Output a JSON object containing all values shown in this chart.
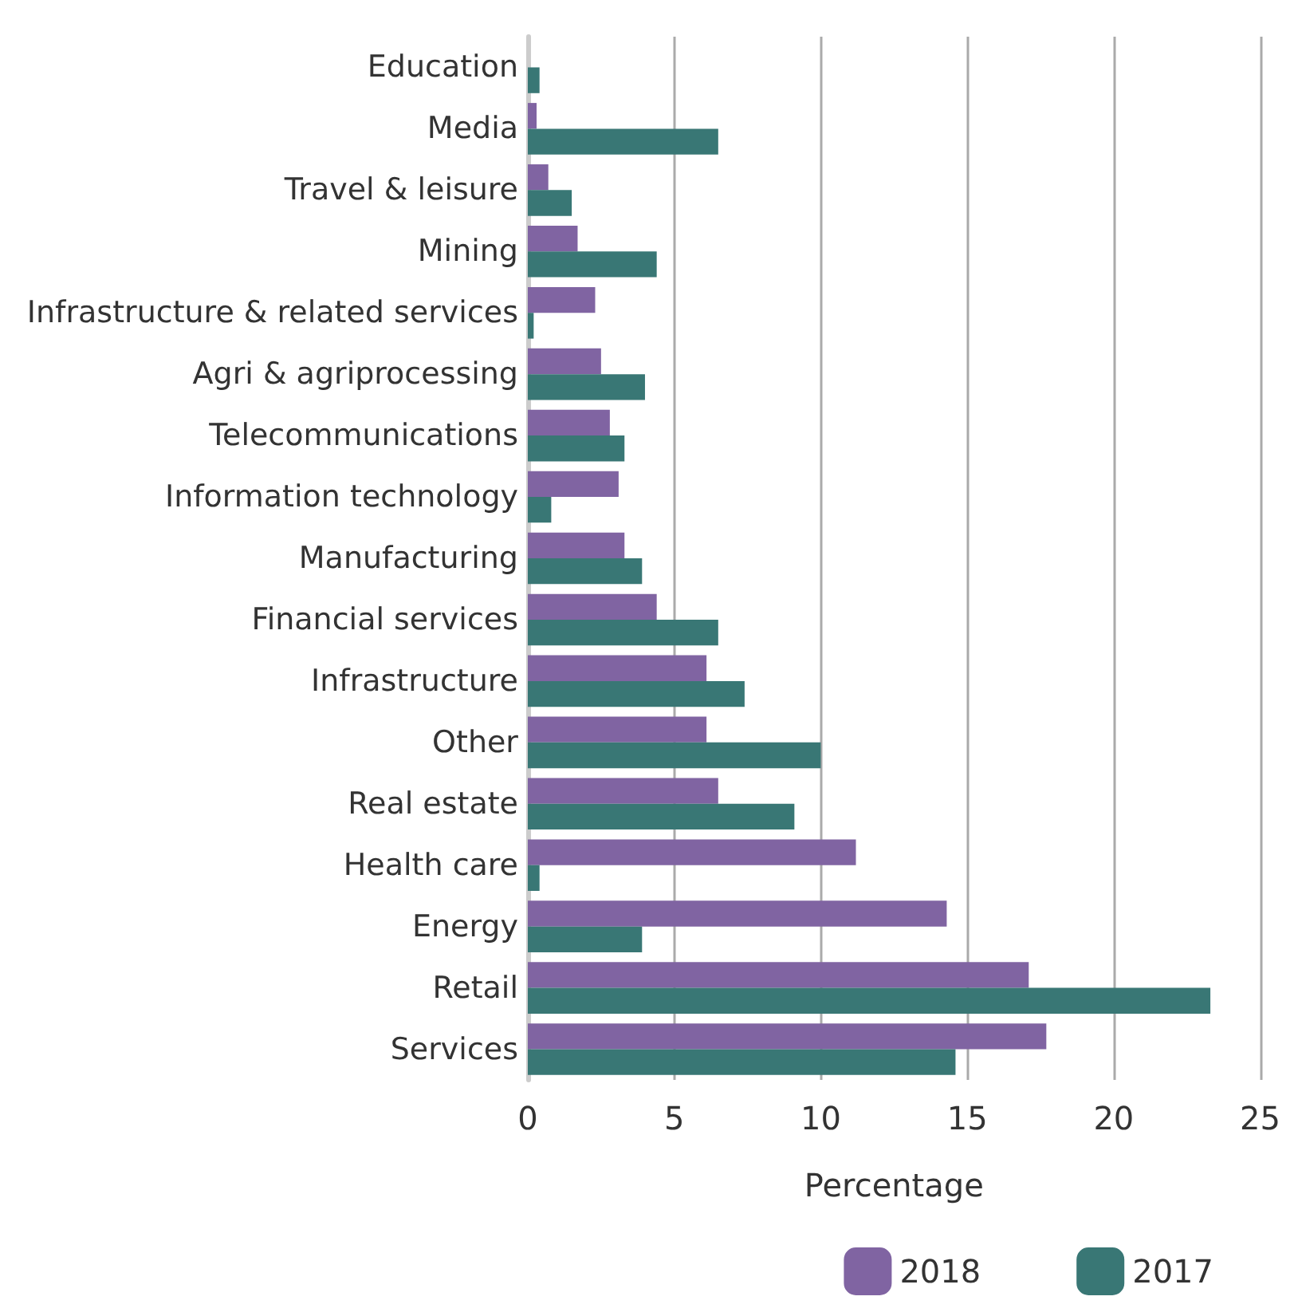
{
  "chart_data": {
    "type": "bar",
    "orientation": "horizontal",
    "xlabel": "Percentage",
    "categories": [
      "Education",
      "Media",
      "Travel & leisure",
      "Mining",
      "Infrastructure & related services",
      "Agri & agriprocessing",
      "Telecommunications",
      "Information technology",
      "Manufacturing",
      "Financial services",
      "Infrastructure",
      "Other",
      "Real estate",
      "Health care",
      "Energy",
      "Retail",
      "Services"
    ],
    "series": [
      {
        "name": "2018",
        "color": "#8064a2",
        "values": [
          0,
          0.3,
          0.7,
          1.7,
          2.3,
          2.5,
          2.8,
          3.1,
          3.3,
          4.4,
          6.1,
          6.1,
          6.5,
          11.2,
          14.3,
          17.1,
          17.7
        ]
      },
      {
        "name": "2017",
        "color": "#397775",
        "values": [
          0.4,
          6.5,
          1.5,
          4.4,
          0.2,
          4.0,
          3.3,
          0.8,
          3.9,
          6.5,
          7.4,
          10.0,
          9.1,
          0.4,
          3.9,
          23.3,
          14.6
        ]
      }
    ],
    "xlim": [
      0,
      25
    ],
    "xticks": [
      0,
      5,
      10,
      15,
      20,
      25
    ],
    "grid": "x",
    "legend": "bottom right"
  }
}
